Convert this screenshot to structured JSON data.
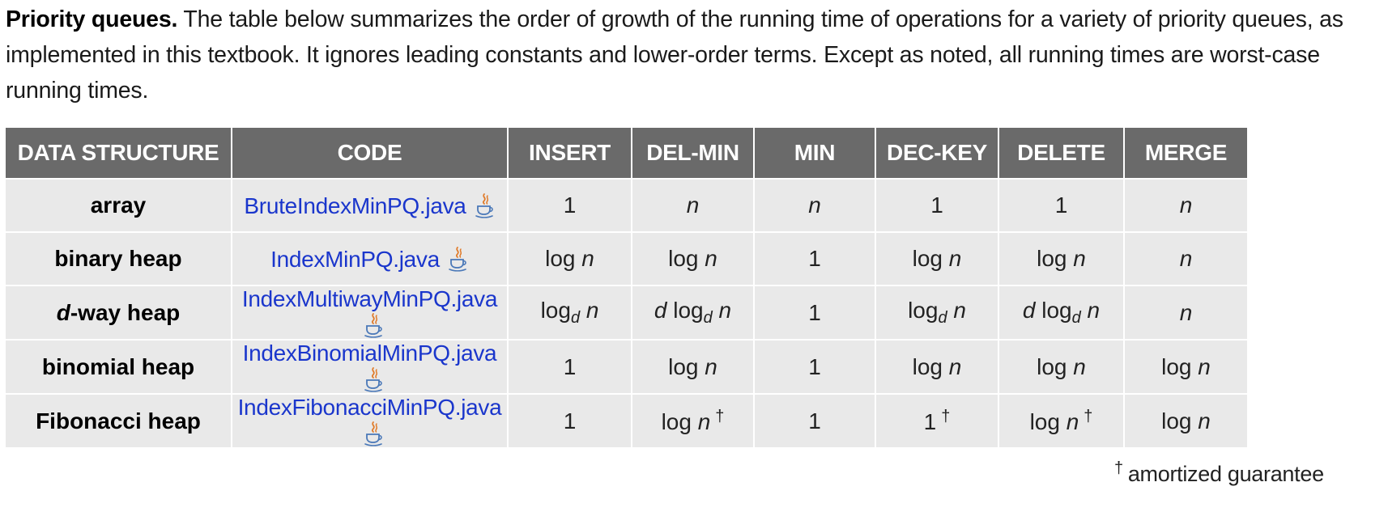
{
  "intro": {
    "heading": "Priority queues.",
    "text": " The table below summarizes the order of growth of the running time of operations for a variety of priority queues, as implemented in this textbook. It ignores leading constants and lower-order terms. Except as noted, all running times are worst-case running times."
  },
  "table": {
    "headers": [
      "DATA STRUCTURE",
      "CODE",
      "INSERT",
      "DEL-MIN",
      "MIN",
      "DEC-KEY",
      "DELETE",
      "MERGE"
    ],
    "rows": [
      {
        "name": "array",
        "code": "BruteIndexMinPQ.java",
        "cells": [
          {
            "pre": "",
            "var": "",
            "sub": "",
            "post": "1",
            "dag": ""
          },
          {
            "pre": "",
            "var": "",
            "sub": "",
            "post": "n",
            "dag": ""
          },
          {
            "pre": "",
            "var": "",
            "sub": "",
            "post": "n",
            "dag": ""
          },
          {
            "pre": "",
            "var": "",
            "sub": "",
            "post": "1",
            "dag": ""
          },
          {
            "pre": "",
            "var": "",
            "sub": "",
            "post": "1",
            "dag": ""
          },
          {
            "pre": "",
            "var": "",
            "sub": "",
            "post": "n",
            "dag": ""
          }
        ]
      },
      {
        "name": "binary heap",
        "code": "IndexMinPQ.java",
        "cells": [
          {
            "pre": "log ",
            "var": "",
            "sub": "",
            "post": "n",
            "dag": ""
          },
          {
            "pre": "log ",
            "var": "",
            "sub": "",
            "post": "n",
            "dag": ""
          },
          {
            "pre": "",
            "var": "",
            "sub": "",
            "post": "1",
            "dag": ""
          },
          {
            "pre": "log ",
            "var": "",
            "sub": "",
            "post": "n",
            "dag": ""
          },
          {
            "pre": "log ",
            "var": "",
            "sub": "",
            "post": "n",
            "dag": ""
          },
          {
            "pre": "",
            "var": "",
            "sub": "",
            "post": "n",
            "dag": ""
          }
        ]
      },
      {
        "name_italic": "d",
        "name": "-way heap",
        "code": "IndexMultiwayMinPQ.java",
        "cells": [
          {
            "pre": "log",
            "var": "",
            "sub": "d",
            "post": "n",
            "dag": ""
          },
          {
            "pre": "log",
            "var": "d",
            "sub": "d",
            "post": "n",
            "dag": ""
          },
          {
            "pre": "",
            "var": "",
            "sub": "",
            "post": "1",
            "dag": ""
          },
          {
            "pre": "log",
            "var": "",
            "sub": "d",
            "post": "n",
            "dag": ""
          },
          {
            "pre": "log",
            "var": "d",
            "sub": "d",
            "post": "n",
            "dag": ""
          },
          {
            "pre": "",
            "var": "",
            "sub": "",
            "post": "n",
            "dag": ""
          }
        ]
      },
      {
        "name": "binomial heap",
        "code": "IndexBinomialMinPQ.java",
        "cells": [
          {
            "pre": "",
            "var": "",
            "sub": "",
            "post": "1",
            "dag": ""
          },
          {
            "pre": "log ",
            "var": "",
            "sub": "",
            "post": "n",
            "dag": ""
          },
          {
            "pre": "",
            "var": "",
            "sub": "",
            "post": "1",
            "dag": ""
          },
          {
            "pre": "log ",
            "var": "",
            "sub": "",
            "post": "n",
            "dag": ""
          },
          {
            "pre": "log ",
            "var": "",
            "sub": "",
            "post": "n",
            "dag": ""
          },
          {
            "pre": "log ",
            "var": "",
            "sub": "",
            "post": "n",
            "dag": ""
          }
        ]
      },
      {
        "name": "Fibonacci heap",
        "code": "IndexFibonacciMinPQ.java",
        "cells": [
          {
            "pre": "",
            "var": "",
            "sub": "",
            "post": "1",
            "dag": ""
          },
          {
            "pre": "log ",
            "var": "",
            "sub": "",
            "post": "n",
            "dag": "†"
          },
          {
            "pre": "",
            "var": "",
            "sub": "",
            "post": "1",
            "dag": ""
          },
          {
            "pre": "",
            "var": "",
            "sub": "",
            "post": "1",
            "dag": "†"
          },
          {
            "pre": "log ",
            "var": "",
            "sub": "",
            "post": "n",
            "dag": "†"
          },
          {
            "pre": "log ",
            "var": "",
            "sub": "",
            "post": "n",
            "dag": ""
          }
        ]
      }
    ]
  },
  "footnote": {
    "symbol": "†",
    "text": "amortized guarantee"
  },
  "colors": {
    "header_bg": "#6a6a6a",
    "cell_bg": "#e9e9e9",
    "link": "#1a36cc"
  },
  "icons": {
    "code_icon": "java-coffee-cup-icon"
  }
}
